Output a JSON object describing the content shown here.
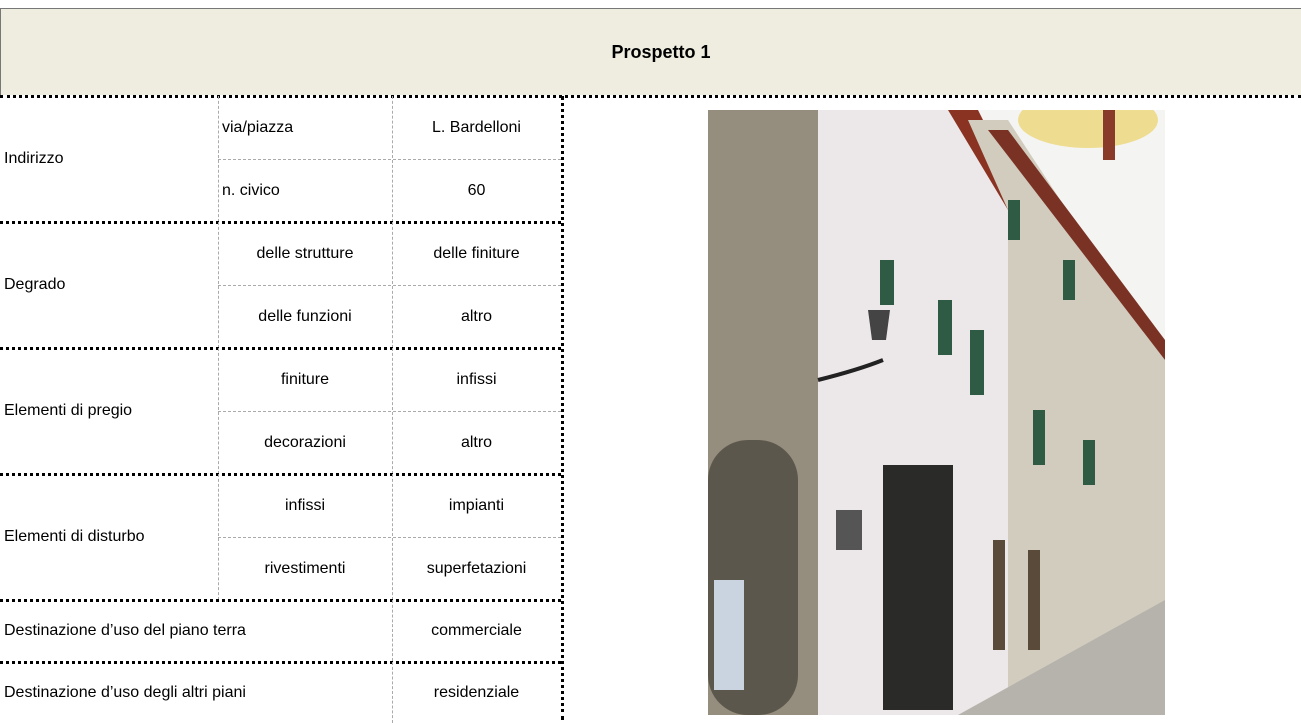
{
  "header": {
    "title": "Prospetto 1"
  },
  "table": {
    "groups": [
      {
        "label": "Indirizzo",
        "cells": [
          [
            "via/piazza",
            "L. Bardelloni"
          ],
          [
            "n. civico",
            "60"
          ]
        ]
      },
      {
        "label": "Degrado",
        "cells": [
          [
            "delle strutture",
            "delle finiture"
          ],
          [
            "delle funzioni",
            "altro"
          ]
        ]
      },
      {
        "label": "Elementi di pregio",
        "cells": [
          [
            "finiture",
            "infissi"
          ],
          [
            "decorazioni",
            "altro"
          ]
        ]
      },
      {
        "label": "Elementi di disturbo",
        "cells": [
          [
            "infissi",
            "impianti"
          ],
          [
            "rivestimenti",
            "superfetazioni"
          ]
        ]
      }
    ],
    "rows": [
      {
        "label": "Destinazione d’uso del piano terra",
        "value": "commerciale"
      },
      {
        "label": "Destinazione d’uso degli altri piani",
        "value": "residenziale"
      }
    ]
  }
}
